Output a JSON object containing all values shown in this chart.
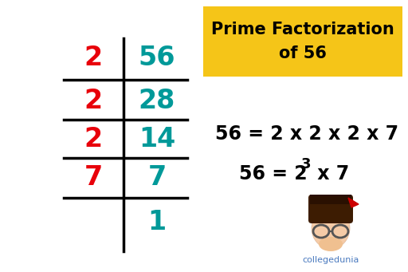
{
  "bg_color": "#ffffff",
  "title_box_color": "#f5c518",
  "title_text": "Prime Factorization\nof 56",
  "title_fontsize": 15,
  "title_color": "#000000",
  "red_color": "#e8000a",
  "teal_color": "#009999",
  "black_color": "#000000",
  "collegedunia_color": "#4a7abf",
  "divisors": [
    "2",
    "2",
    "2",
    "7"
  ],
  "quotients": [
    "56",
    "28",
    "14",
    "7",
    "1"
  ],
  "equation1": "56 = 2 x 2 x 2 x 7",
  "equation2_base": "56 = 2",
  "equation2_exp": "3",
  "equation2_rest": " x 7",
  "num_fontsize": 24,
  "eq_fontsize": 17
}
